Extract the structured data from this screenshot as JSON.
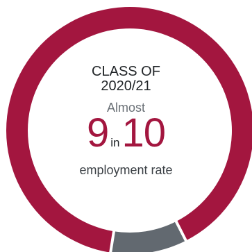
{
  "colors": {
    "accent": "#A3163F",
    "secondary": "#626970",
    "background": "#FFFFFF"
  },
  "center": {
    "line1": "CLASS OF",
    "line2": "2020/21",
    "qualifier": "Almost",
    "numerator": "9",
    "connector": "in",
    "denominator": "10",
    "metric": "employment rate"
  },
  "chart_data": {
    "type": "pie",
    "style": "donut",
    "series": [
      {
        "value": 90,
        "color": "#A3163F"
      },
      {
        "value": 10,
        "color": "#626970"
      }
    ],
    "start_angle_deg": 189,
    "direction": "clockwise"
  }
}
